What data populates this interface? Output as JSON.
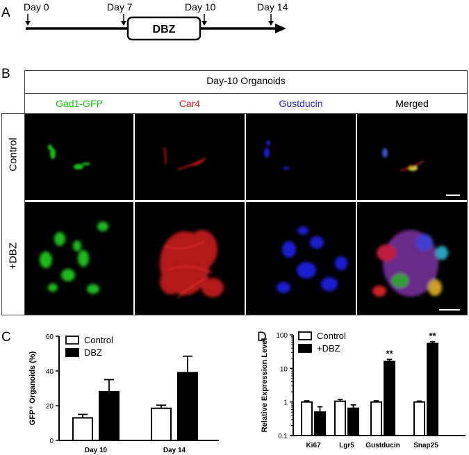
{
  "panel_a": {
    "letter": "A",
    "timepoints": [
      "Day 0",
      "Day 7",
      "Day 10",
      "Day 14"
    ],
    "treatment_box": "DBZ"
  },
  "panel_b": {
    "letter": "B",
    "title": "Day-10 Organoids",
    "columns": [
      {
        "label": "Gad1-GFP",
        "color": "#16c60c"
      },
      {
        "label": "Car4",
        "color": "#e8141b"
      },
      {
        "label": "Gustducin",
        "color": "#1f1fe0"
      },
      {
        "label": "Merged",
        "color": "#000000"
      }
    ],
    "rows": [
      "Control",
      "+DBZ"
    ]
  },
  "chart_data": [
    {
      "panel": "C",
      "type": "bar",
      "ylabel": "GFP⁺ Organoids (%)",
      "ylim": [
        0,
        60
      ],
      "yticks": [
        "0",
        "20",
        "40",
        "60"
      ],
      "categories": [
        "Day 10",
        "Day 14"
      ],
      "series": [
        {
          "name": "Control",
          "values": [
            13,
            18.5
          ],
          "errors": [
            2,
            1.8
          ],
          "fill": "#ffffff"
        },
        {
          "name": "DBZ",
          "values": [
            28,
            39
          ],
          "errors": [
            7,
            9.5
          ],
          "fill": "#000000"
        }
      ],
      "legend": "top-left"
    },
    {
      "panel": "D",
      "type": "bar",
      "scale": "log",
      "ylabel": "Relative Expression Level",
      "ylim": [
        0.1,
        100
      ],
      "yticks": [
        "0.1",
        "1",
        "10",
        "100"
      ],
      "categories": [
        "Ki67",
        "Lgr5",
        "Gustducin",
        "Snap25"
      ],
      "series": [
        {
          "name": "Control",
          "values": [
            1.0,
            1.05,
            1.0,
            1.0
          ],
          "errors": [
            0.08,
            0.15,
            0.08,
            0.06
          ],
          "fill": "#ffffff"
        },
        {
          "name": "+DBZ",
          "values": [
            0.5,
            0.65,
            16,
            55
          ],
          "errors": [
            0.22,
            0.17,
            2.5,
            7
          ],
          "fill": "#000000"
        }
      ],
      "significance": [
        "",
        "",
        "**",
        "**"
      ],
      "legend": "top-left"
    }
  ]
}
